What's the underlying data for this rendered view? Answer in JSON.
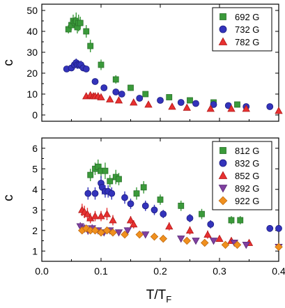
{
  "chart_data": [
    {
      "type": "scatter",
      "panel": "top",
      "title": "",
      "xlabel": "",
      "ylabel": "c",
      "xlim": [
        0.0,
        0.4
      ],
      "ylim": [
        -3,
        53
      ],
      "yticks": [
        0,
        10,
        20,
        30,
        40,
        50
      ],
      "show_x_tick_labels": false,
      "grid": false,
      "legend_position": "top-right",
      "series": [
        {
          "name": "692 G",
          "marker": "square",
          "color": "#3a9a3a",
          "x": [
            0.045,
            0.05,
            0.053,
            0.056,
            0.058,
            0.06,
            0.062,
            0.065,
            0.075,
            0.082,
            0.1,
            0.125,
            0.15,
            0.175,
            0.215,
            0.25,
            0.29,
            0.33
          ],
          "y": [
            41,
            43,
            45,
            44,
            45,
            42,
            44,
            44,
            40,
            33,
            24,
            17,
            13,
            10,
            8.5,
            7,
            6,
            5
          ],
          "err": [
            2,
            2.5,
            3,
            3,
            4,
            3,
            4,
            3,
            3,
            3,
            2.5,
            2,
            1.5,
            1.2,
            1,
            1,
            1,
            1
          ]
        },
        {
          "name": "732 G",
          "marker": "circle",
          "color": "#3333bb",
          "x": [
            0.042,
            0.05,
            0.055,
            0.058,
            0.06,
            0.063,
            0.066,
            0.07,
            0.075,
            0.09,
            0.105,
            0.125,
            0.135,
            0.165,
            0.2,
            0.235,
            0.26,
            0.29,
            0.315,
            0.345,
            0.385
          ],
          "y": [
            22,
            22.5,
            24,
            25,
            24,
            24,
            24,
            22.5,
            22,
            16,
            13,
            11,
            10,
            8,
            7,
            6,
            5.5,
            5,
            4.5,
            4,
            4
          ],
          "err": [
            1.5,
            1.5,
            2,
            2,
            2,
            2,
            2,
            1.5,
            1.5,
            1.5,
            1.2,
            1,
            1,
            1,
            0.8,
            0.8,
            0.7,
            0.7,
            0.6,
            0.6,
            0.6
          ]
        },
        {
          "name": "782 G",
          "marker": "triangle-up",
          "color": "#e83030",
          "x": [
            0.075,
            0.082,
            0.087,
            0.09,
            0.095,
            0.1,
            0.115,
            0.13,
            0.155,
            0.18,
            0.22,
            0.245,
            0.285,
            0.32,
            0.345,
            0.4
          ],
          "y": [
            9,
            9.5,
            9,
            9,
            9,
            8.5,
            7.5,
            7,
            6,
            5,
            4,
            3.5,
            3,
            3,
            3,
            2
          ],
          "err": [
            1,
            1,
            1,
            1,
            1,
            1,
            1,
            0.8,
            0.8,
            0.7,
            0.6,
            0.5,
            0.5,
            0.5,
            0.5,
            0.5
          ]
        }
      ]
    },
    {
      "type": "scatter",
      "panel": "bottom",
      "title": "",
      "xlabel": "T/T",
      "xlabel_subscript": "F",
      "ylabel": "c",
      "xlim": [
        0.0,
        0.4
      ],
      "ylim": [
        0.5,
        6.5
      ],
      "xticks": [
        0.0,
        0.1,
        0.2,
        0.3,
        0.4
      ],
      "yticks": [
        1,
        2,
        3,
        4,
        5,
        6
      ],
      "grid": false,
      "legend_position": "top-right",
      "series": [
        {
          "name": "812 G",
          "marker": "square",
          "color": "#3a9a3a",
          "x": [
            0.082,
            0.09,
            0.095,
            0.1,
            0.107,
            0.115,
            0.125,
            0.13,
            0.16,
            0.172,
            0.2,
            0.235,
            0.27,
            0.32,
            0.335
          ],
          "y": [
            4.7,
            5.0,
            5.1,
            4.9,
            4.9,
            4.4,
            4.6,
            4.5,
            3.8,
            4.1,
            3.5,
            3.2,
            2.8,
            2.5,
            2.5
          ],
          "err": [
            0.3,
            0.3,
            0.35,
            0.35,
            0.4,
            0.3,
            0.35,
            0.3,
            0.3,
            0.3,
            0.25,
            0.25,
            0.25,
            0.2,
            0.2
          ]
        },
        {
          "name": "832 G",
          "marker": "circle",
          "color": "#3333bb",
          "x": [
            0.078,
            0.09,
            0.1,
            0.102,
            0.107,
            0.112,
            0.118,
            0.14,
            0.15,
            0.175,
            0.19,
            0.205,
            0.25,
            0.285,
            0.385,
            0.4
          ],
          "y": [
            3.8,
            3.8,
            4.3,
            4.1,
            3.9,
            3.9,
            3.8,
            3.6,
            3.3,
            3.2,
            3.0,
            2.8,
            2.6,
            2.3,
            2.1,
            2.1
          ],
          "err": [
            0.3,
            0.3,
            0.35,
            0.35,
            0.3,
            0.3,
            0.3,
            0.3,
            0.25,
            0.25,
            0.25,
            0.2,
            0.2,
            0.2,
            0.15,
            0.15
          ]
        },
        {
          "name": "852 G",
          "marker": "triangle-up",
          "color": "#e83030",
          "x": [
            0.068,
            0.072,
            0.077,
            0.082,
            0.09,
            0.1,
            0.11,
            0.12,
            0.15,
            0.155,
            0.215,
            0.25,
            0.28,
            0.3,
            0.32,
            0.35
          ],
          "y": [
            3.0,
            2.9,
            2.8,
            2.6,
            2.7,
            2.7,
            2.8,
            2.5,
            2.5,
            2.3,
            2.2,
            2.0,
            1.8,
            1.6,
            1.5,
            1.4
          ],
          "err": [
            0.3,
            0.3,
            0.3,
            0.25,
            0.25,
            0.25,
            0.3,
            0.25,
            0.2,
            0.2,
            0.2,
            0.2,
            0.2,
            0.15,
            0.15,
            0.15
          ]
        },
        {
          "name": "892 G",
          "marker": "triangle-down",
          "color": "#8040a0",
          "x": [
            0.065,
            0.072,
            0.078,
            0.085,
            0.095,
            0.105,
            0.115,
            0.13,
            0.145,
            0.175,
            0.235,
            0.26,
            0.29,
            0.325,
            0.345,
            0.4
          ],
          "y": [
            2.2,
            2.1,
            2.0,
            2.1,
            2.0,
            1.9,
            2.0,
            1.9,
            2.0,
            1.8,
            1.6,
            1.5,
            1.5,
            1.4,
            1.3,
            1.2
          ],
          "err": [
            0.2,
            0.2,
            0.2,
            0.2,
            0.15,
            0.15,
            0.15,
            0.15,
            0.15,
            0.15,
            0.15,
            0.12,
            0.12,
            0.12,
            0.12,
            0.12
          ]
        },
        {
          "name": "922 G",
          "marker": "diamond",
          "color": "#f0901e",
          "x": [
            0.068,
            0.075,
            0.082,
            0.09,
            0.1,
            0.11,
            0.12,
            0.14,
            0.165,
            0.19,
            0.205,
            0.245,
            0.275,
            0.31,
            0.33,
            0.4
          ],
          "y": [
            2.0,
            2.1,
            2.0,
            2.0,
            1.9,
            2.0,
            1.9,
            1.8,
            1.8,
            1.7,
            1.6,
            1.5,
            1.4,
            1.3,
            1.3,
            1.2
          ],
          "err": [
            0.15,
            0.15,
            0.15,
            0.15,
            0.15,
            0.15,
            0.12,
            0.12,
            0.12,
            0.12,
            0.1,
            0.1,
            0.1,
            0.1,
            0.1,
            0.1
          ]
        }
      ]
    }
  ]
}
